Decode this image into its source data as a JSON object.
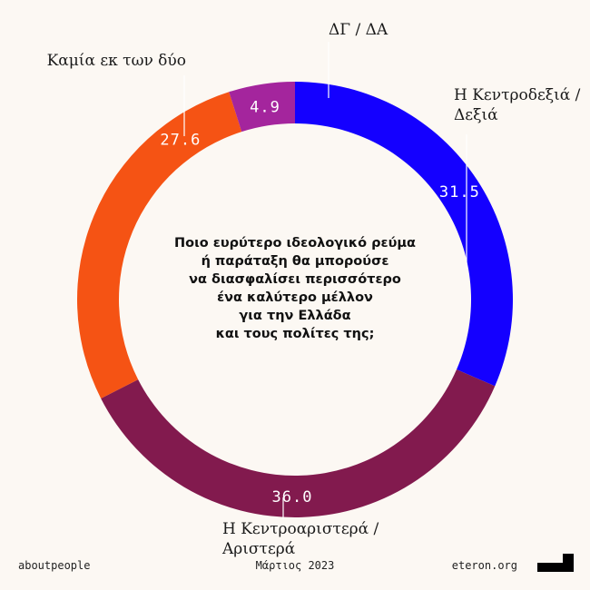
{
  "chart_data": {
    "type": "pie",
    "donut": true,
    "title": "Ποιο ευρύτερο ιδεολογικό ρεύμα ή παράταξη θα μπορούσε να διασφαλίσει περισσότερο ένα καλύτερο μέλλον για την Ελλάδα και τους πολίτες της;",
    "title_lines": [
      "Ποιο ευρύτερο ιδεολογικό ρεύμα",
      "ή παράταξη θα μπορούσε",
      "να διασφαλίσει περισσότερο",
      "ένα καλύτερο μέλλον",
      "για την Ελλάδα",
      "και τους πολίτες της;"
    ],
    "slices": [
      {
        "label": "Η Κεντροδεξιά / Δεξιά",
        "label_lines": [
          "Η Κεντροδεξιά /",
          "Δεξιά"
        ],
        "value": 31.5,
        "value_text": "31.5",
        "color": "#1400ff"
      },
      {
        "label": "Η Κεντροαριστερά / Αριστερά",
        "label_lines": [
          "Η Κεντροαριστερά /",
          "Αριστερά"
        ],
        "value": 36.0,
        "value_text": "36.0",
        "color": "#821a4e"
      },
      {
        "label": "Καμία εκ των δύο",
        "label_lines": [
          "Καμία εκ των δύο"
        ],
        "value": 27.6,
        "value_text": "27.6",
        "color": "#f55314"
      },
      {
        "label": "ΔΓ / ΔΑ",
        "label_lines": [
          "ΔΓ / ΔΑ"
        ],
        "value": 4.9,
        "value_text": "4.9",
        "color": "#a4259d"
      }
    ],
    "start": "top",
    "direction": "clockwise"
  },
  "footer": {
    "left": "aboutpeople",
    "center": "Μάρτιος 2023",
    "right": "eteron.org"
  },
  "logo": {
    "name": "eteron-logo",
    "color": "#000000"
  }
}
